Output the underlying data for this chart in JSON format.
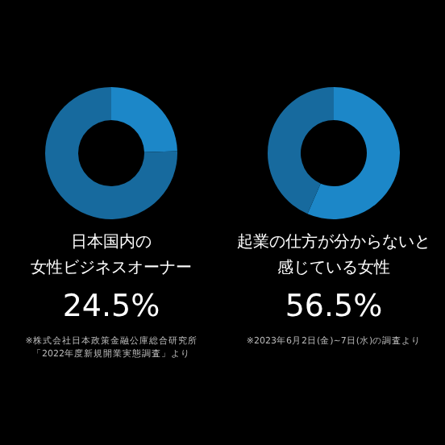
{
  "chart_data": [
    {
      "type": "donut",
      "categories": [
        null,
        null
      ],
      "values": [
        24.5,
        75.5
      ],
      "colors": [
        "#1c87c8",
        "#176a9e"
      ],
      "title": "日本国内の",
      "subtitle": "女性ビジネスオーナー",
      "annotations": [
        "24.5%",
        "※株式会社日本政策金融公庫総合研究所",
        "「2022年度新規開業実態調査」より"
      ]
    },
    {
      "type": "donut",
      "categories": [
        null,
        null
      ],
      "values": [
        56.5,
        43.5
      ],
      "colors": [
        "#1c87c8",
        "#176a9e"
      ],
      "title": "起業の仕方が分からないと",
      "subtitle": "感じている女性",
      "annotations": [
        "56.5%",
        "※2023年6月2日(金)~7日(水)の調査より"
      ]
    }
  ]
}
